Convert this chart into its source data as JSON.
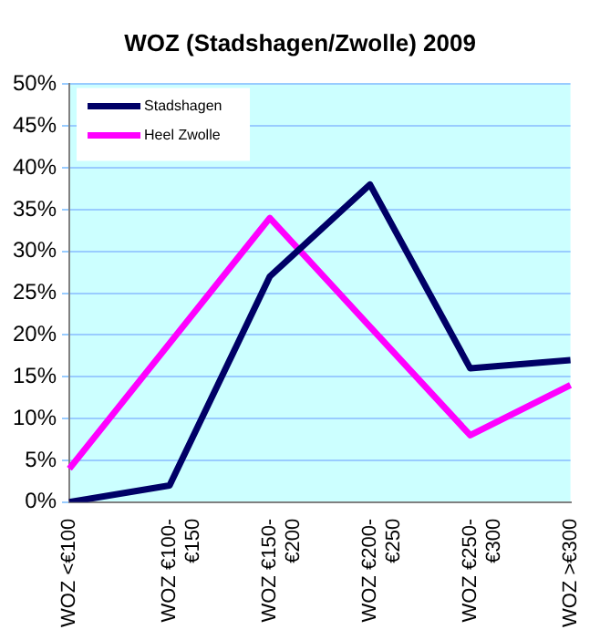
{
  "chart_data": {
    "type": "line",
    "title": "WOZ (Stadshagen/Zwolle) 2009",
    "categories": [
      "WOZ <€100",
      "WOZ €100-\n€150",
      "WOZ €150-\n€200",
      "WOZ €200-\n€250",
      "WOZ €250-\n€300",
      "WOZ >€300"
    ],
    "series": [
      {
        "name": "Stadshagen",
        "color": "#000066",
        "values": [
          0,
          2,
          27,
          38,
          16,
          17
        ]
      },
      {
        "name": "Heel Zwolle",
        "color": "#ff00ff",
        "values": [
          4,
          19,
          34,
          21,
          8,
          14
        ]
      }
    ],
    "ylim": [
      0,
      50
    ],
    "yticks": [
      {
        "value": 0,
        "label": "0%"
      },
      {
        "value": 5,
        "label": "5%"
      },
      {
        "value": 10,
        "label": "10%"
      },
      {
        "value": 15,
        "label": "15%"
      },
      {
        "value": 20,
        "label": "20%"
      },
      {
        "value": 25,
        "label": "25%"
      },
      {
        "value": 30,
        "label": "30%"
      },
      {
        "value": 35,
        "label": "35%"
      },
      {
        "value": 40,
        "label": "40%"
      },
      {
        "value": 45,
        "label": "45%"
      },
      {
        "value": 50,
        "label": "50%"
      }
    ],
    "grid": "y",
    "legend": "top left",
    "marker": "none",
    "line_style": "solid"
  }
}
